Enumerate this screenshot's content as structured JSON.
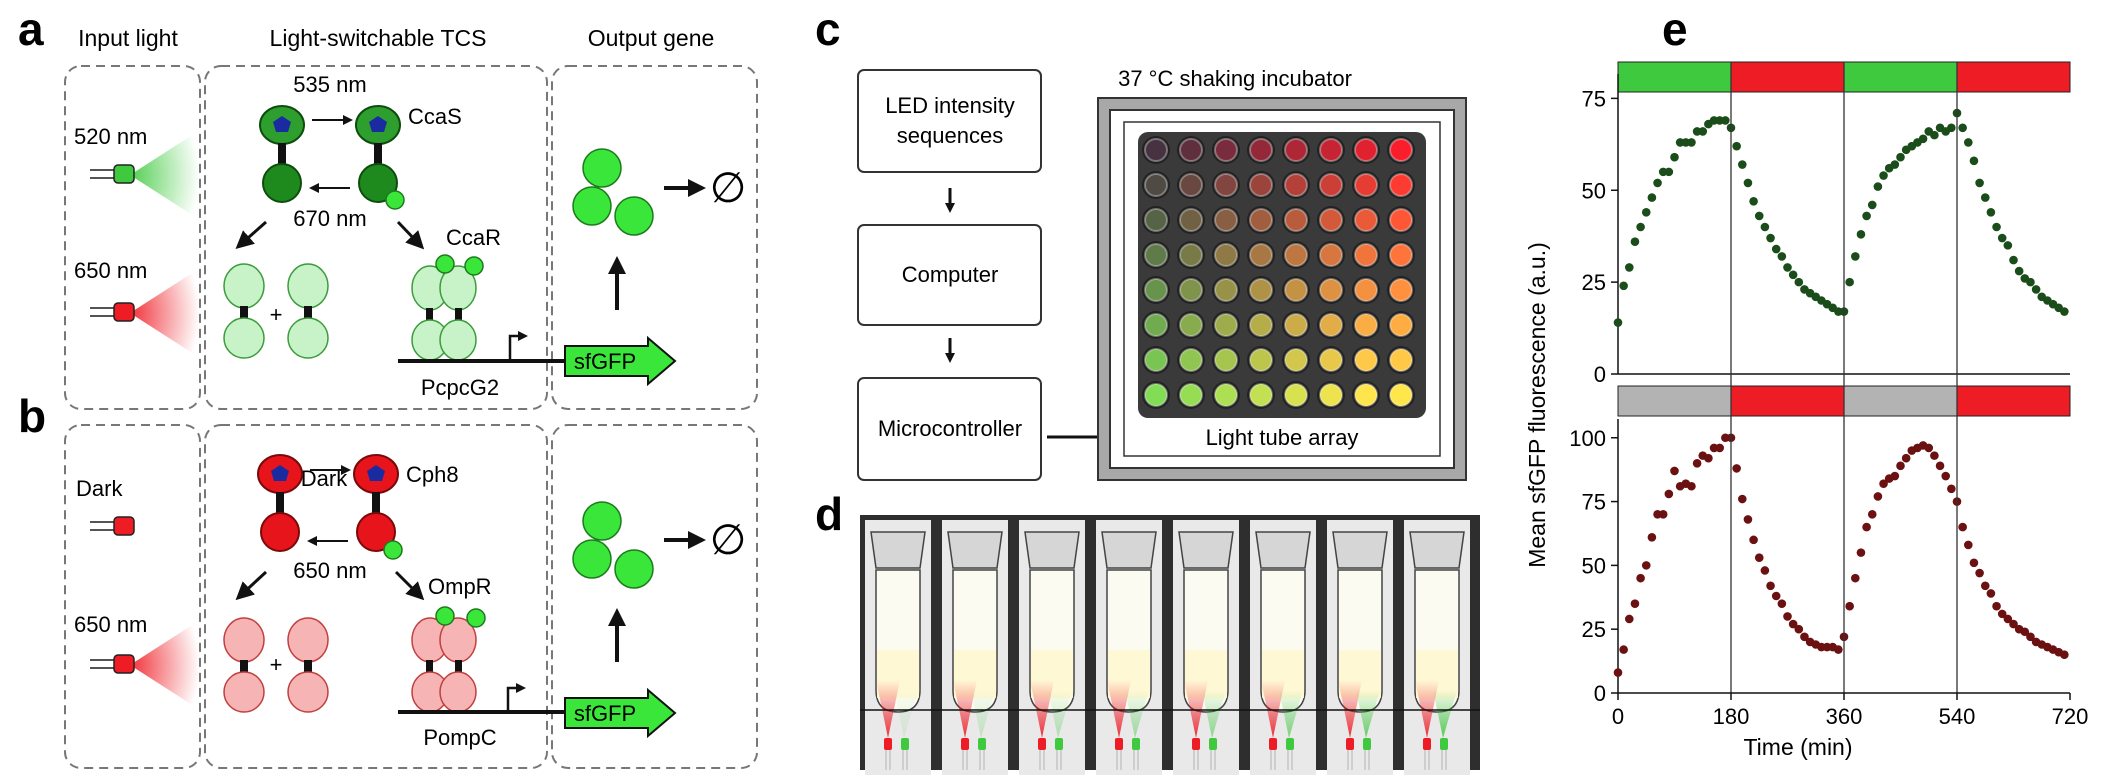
{
  "panels": {
    "a": "a",
    "b": "b",
    "c": "c",
    "d": "d",
    "e": "e"
  },
  "headers": {
    "input": "Input light",
    "tcs": "Light-switchable TCS",
    "output": "Output gene"
  },
  "panel_a": {
    "top_wavelength": "535 nm",
    "sensor": "CcaS",
    "bottom_wavelength": "670 nm",
    "light_1": "520 nm",
    "light_2": "650 nm",
    "regulator": "CcaR",
    "plus": "+",
    "promoter": "PcpcG2",
    "gene": "sfGFP",
    "degradation": "∅"
  },
  "panel_b": {
    "top_label": "Dark",
    "sensor": "Cph8",
    "bottom_wavelength": "650 nm",
    "light_1": "Dark",
    "light_2": "650 nm",
    "regulator": "OmpR",
    "plus": "+",
    "promoter": "PompC",
    "gene": "sfGFP",
    "degradation": "∅"
  },
  "panel_c": {
    "step_1": "LED intensity",
    "step_1b": "sequences",
    "step_2": "Computer",
    "step_3": "Microcontroller",
    "incubator": "37 °C shaking incubator",
    "array": "Light tube array"
  },
  "colors": {
    "green_light": "#3fc93f",
    "red_light": "#ee1c24",
    "dark_green": "#1e8a1e",
    "ccas_fill": "#2e9e2e",
    "cph8_fill": "#e8141c",
    "gfp": "#39e639",
    "pale_green": "#c8f2c8",
    "pale_red": "#f7b4b4",
    "gray_bar": "#b3b3b3"
  },
  "chart_data": {
    "type": "scatter",
    "xlabel": "Time (min)",
    "ylabel": "Mean sfGFP fluorescence (a.u.)",
    "xlim": [
      0,
      720
    ],
    "x_ticks": [
      "0",
      "180",
      "360",
      "540",
      "720"
    ],
    "top_plot": {
      "ylim": [
        0,
        80
      ],
      "y_ticks": [
        "0",
        "25",
        "50",
        "75"
      ],
      "light_bar": [
        "green",
        "red",
        "green",
        "red"
      ],
      "color": "#1a4d1a",
      "x": [
        0,
        9,
        18,
        27,
        36,
        45,
        54,
        63,
        72,
        81,
        90,
        99,
        108,
        117,
        126,
        135,
        144,
        153,
        162,
        171,
        180,
        189,
        198,
        207,
        216,
        225,
        234,
        243,
        252,
        261,
        270,
        279,
        288,
        297,
        306,
        315,
        324,
        333,
        342,
        351,
        360,
        369,
        378,
        387,
        396,
        405,
        414,
        423,
        432,
        441,
        450,
        459,
        468,
        477,
        486,
        495,
        504,
        513,
        522,
        531,
        540,
        549,
        558,
        567,
        576,
        585,
        594,
        603,
        612,
        621,
        630,
        639,
        648,
        657,
        666,
        675,
        684,
        693,
        702,
        711
      ],
      "y": [
        14,
        24,
        29,
        36,
        40,
        44,
        48,
        52,
        55,
        55,
        59,
        63,
        63,
        63,
        66,
        66,
        68,
        69,
        69,
        69,
        67,
        62,
        57,
        52,
        47,
        43,
        40,
        37,
        34,
        32,
        29,
        27,
        25,
        23,
        22,
        21,
        20,
        19,
        18,
        17,
        17,
        25,
        32,
        38,
        43,
        46,
        51,
        54,
        56,
        57,
        59,
        61,
        62,
        63,
        64,
        66,
        65,
        67,
        66,
        67,
        71,
        67,
        63,
        58,
        52,
        48,
        44,
        40,
        37,
        35,
        31,
        28,
        26,
        25,
        23,
        21,
        20,
        19,
        18,
        17
      ]
    },
    "bottom_plot": {
      "ylim": [
        0,
        105
      ],
      "y_ticks": [
        "0",
        "25",
        "50",
        "75",
        "100"
      ],
      "light_bar": [
        "gray",
        "red",
        "gray",
        "red"
      ],
      "color": "#6b1111",
      "x": [
        0,
        9,
        18,
        27,
        36,
        45,
        54,
        63,
        72,
        81,
        90,
        99,
        108,
        117,
        126,
        135,
        144,
        153,
        162,
        171,
        180,
        189,
        198,
        207,
        216,
        225,
        234,
        243,
        252,
        261,
        270,
        279,
        288,
        297,
        306,
        315,
        324,
        333,
        342,
        351,
        360,
        369,
        378,
        387,
        396,
        405,
        414,
        423,
        432,
        441,
        450,
        459,
        468,
        477,
        486,
        495,
        504,
        513,
        522,
        531,
        540,
        549,
        558,
        567,
        576,
        585,
        594,
        603,
        612,
        621,
        630,
        639,
        648,
        657,
        666,
        675,
        684,
        693,
        702,
        711
      ],
      "y": [
        8,
        17,
        29,
        35,
        45,
        50,
        61,
        70,
        70,
        78,
        87,
        81,
        82,
        81,
        90,
        93,
        92,
        96,
        96,
        100,
        100,
        88,
        76,
        68,
        60,
        53,
        48,
        42,
        38,
        35,
        30,
        27,
        25,
        22,
        20,
        19,
        18,
        18,
        18,
        17,
        22,
        34,
        45,
        55,
        65,
        70,
        77,
        82,
        84,
        85,
        89,
        92,
        95,
        96,
        97,
        96,
        93,
        89,
        85,
        80,
        75,
        65,
        58,
        51,
        47,
        42,
        39,
        34,
        31,
        29,
        27,
        25,
        24,
        22,
        20,
        19,
        18,
        17,
        16,
        15
      ]
    }
  }
}
